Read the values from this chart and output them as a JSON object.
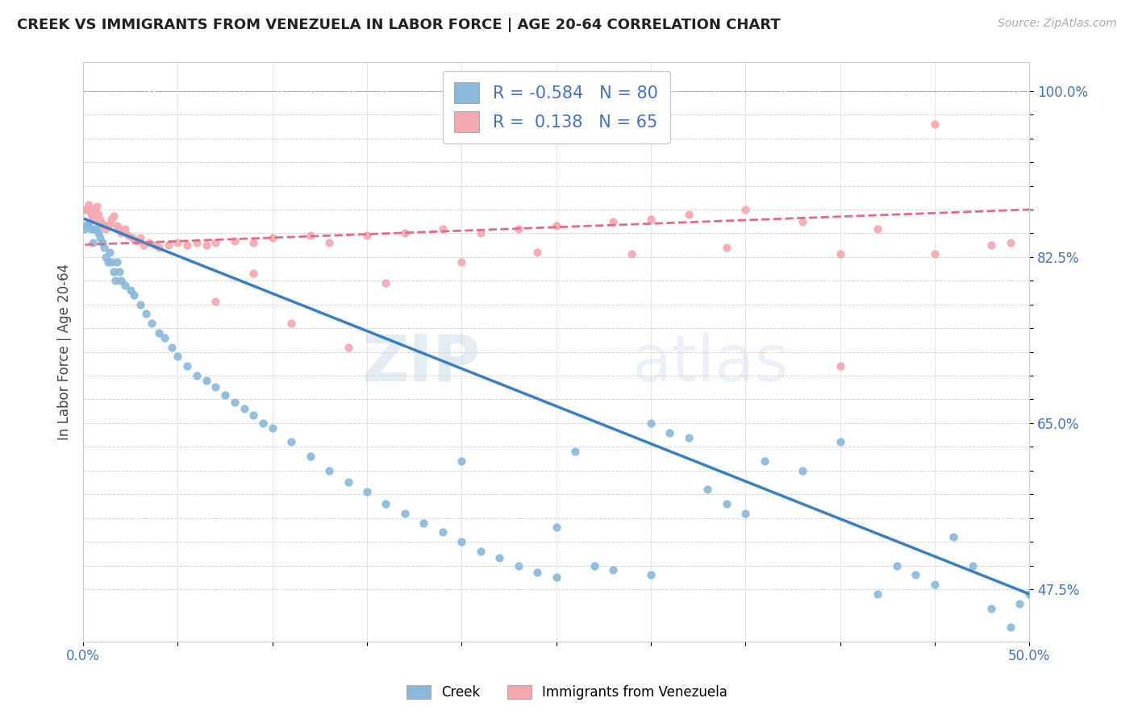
{
  "title": "CREEK VS IMMIGRANTS FROM VENEZUELA IN LABOR FORCE | AGE 20-64 CORRELATION CHART",
  "source": "Source: ZipAtlas.com",
  "ylabel": "In Labor Force | Age 20-64",
  "xlim": [
    0.0,
    0.5
  ],
  "ylim": [
    0.42,
    1.03
  ],
  "yticks": [
    0.475,
    0.5,
    0.525,
    0.55,
    0.575,
    0.6,
    0.625,
    0.65,
    0.675,
    0.7,
    0.725,
    0.75,
    0.775,
    0.8,
    0.825,
    0.85,
    0.875,
    0.9,
    0.925,
    0.95,
    0.975,
    1.0
  ],
  "ytick_labels_right": [
    "47.5%",
    "",
    "",
    "",
    "",
    "",
    "",
    "65.0%",
    "",
    "",
    "",
    "",
    "",
    "",
    "82.5%",
    "",
    "",
    "",
    "",
    "",
    "",
    "100.0%"
  ],
  "xticks": [
    0.0,
    0.05,
    0.1,
    0.15,
    0.2,
    0.25,
    0.3,
    0.35,
    0.4,
    0.45,
    0.5
  ],
  "xtick_labels": [
    "0.0%",
    "",
    "",
    "",
    "",
    "",
    "",
    "",
    "",
    "",
    "50.0%"
  ],
  "creek_color": "#89b8db",
  "venezuela_color": "#f4a8b0",
  "creek_R": -0.584,
  "creek_N": 80,
  "venezuela_R": 0.138,
  "venezuela_N": 65,
  "watermark_zip": "ZIP",
  "watermark_atlas": "atlas",
  "creek_line_color": "#3a7fc1",
  "venezuela_line_color": "#e8688a",
  "creek_line_x0": 0.001,
  "creek_line_x1": 0.5,
  "creek_line_y0": 0.865,
  "creek_line_y1": 0.47,
  "ven_line_x0": 0.001,
  "ven_line_x1": 0.5,
  "ven_line_y0": 0.838,
  "ven_line_y1": 0.875,
  "creek_scatter_x": [
    0.001,
    0.002,
    0.003,
    0.004,
    0.005,
    0.006,
    0.007,
    0.008,
    0.009,
    0.01,
    0.011,
    0.012,
    0.013,
    0.014,
    0.015,
    0.016,
    0.017,
    0.018,
    0.019,
    0.02,
    0.022,
    0.025,
    0.027,
    0.03,
    0.033,
    0.036,
    0.04,
    0.043,
    0.047,
    0.05,
    0.055,
    0.06,
    0.065,
    0.07,
    0.075,
    0.08,
    0.085,
    0.09,
    0.095,
    0.1,
    0.11,
    0.12,
    0.13,
    0.14,
    0.15,
    0.16,
    0.17,
    0.18,
    0.19,
    0.2,
    0.21,
    0.22,
    0.23,
    0.24,
    0.25,
    0.26,
    0.27,
    0.28,
    0.3,
    0.31,
    0.32,
    0.33,
    0.34,
    0.35,
    0.36,
    0.38,
    0.4,
    0.42,
    0.43,
    0.44,
    0.45,
    0.46,
    0.47,
    0.48,
    0.49,
    0.495,
    0.5,
    0.3,
    0.25,
    0.2
  ],
  "creek_scatter_y": [
    0.855,
    0.86,
    0.86,
    0.855,
    0.84,
    0.855,
    0.855,
    0.85,
    0.845,
    0.84,
    0.835,
    0.825,
    0.82,
    0.83,
    0.82,
    0.81,
    0.8,
    0.82,
    0.81,
    0.8,
    0.795,
    0.79,
    0.785,
    0.775,
    0.765,
    0.755,
    0.745,
    0.74,
    0.73,
    0.72,
    0.71,
    0.7,
    0.695,
    0.688,
    0.68,
    0.672,
    0.665,
    0.658,
    0.65,
    0.645,
    0.63,
    0.615,
    0.6,
    0.588,
    0.578,
    0.565,
    0.555,
    0.545,
    0.535,
    0.525,
    0.515,
    0.508,
    0.5,
    0.493,
    0.488,
    0.62,
    0.5,
    0.495,
    0.65,
    0.64,
    0.635,
    0.58,
    0.565,
    0.555,
    0.61,
    0.6,
    0.63,
    0.47,
    0.5,
    0.49,
    0.48,
    0.53,
    0.5,
    0.455,
    0.435,
    0.46,
    0.47,
    0.49,
    0.54,
    0.61
  ],
  "venezuela_scatter_x": [
    0.001,
    0.002,
    0.003,
    0.004,
    0.005,
    0.006,
    0.007,
    0.008,
    0.009,
    0.01,
    0.011,
    0.012,
    0.014,
    0.015,
    0.016,
    0.018,
    0.019,
    0.02,
    0.022,
    0.024,
    0.026,
    0.028,
    0.03,
    0.032,
    0.035,
    0.038,
    0.04,
    0.045,
    0.05,
    0.055,
    0.06,
    0.065,
    0.07,
    0.08,
    0.09,
    0.1,
    0.12,
    0.13,
    0.15,
    0.17,
    0.19,
    0.21,
    0.23,
    0.25,
    0.28,
    0.3,
    0.32,
    0.35,
    0.38,
    0.4,
    0.42,
    0.45,
    0.48,
    0.07,
    0.09,
    0.11,
    0.14,
    0.16,
    0.2,
    0.24,
    0.29,
    0.34,
    0.4,
    0.45,
    0.49
  ],
  "venezuela_scatter_y": [
    0.875,
    0.875,
    0.88,
    0.87,
    0.865,
    0.875,
    0.878,
    0.87,
    0.865,
    0.86,
    0.858,
    0.855,
    0.86,
    0.865,
    0.868,
    0.858,
    0.855,
    0.85,
    0.855,
    0.848,
    0.845,
    0.842,
    0.845,
    0.838,
    0.84,
    0.838,
    0.835,
    0.838,
    0.84,
    0.838,
    0.84,
    0.838,
    0.84,
    0.842,
    0.84,
    0.845,
    0.848,
    0.84,
    0.848,
    0.85,
    0.855,
    0.85,
    0.855,
    0.858,
    0.862,
    0.865,
    0.87,
    0.875,
    0.862,
    0.828,
    0.855,
    0.965,
    0.838,
    0.778,
    0.808,
    0.755,
    0.73,
    0.798,
    0.82,
    0.83,
    0.828,
    0.835,
    0.71,
    0.828,
    0.84
  ]
}
